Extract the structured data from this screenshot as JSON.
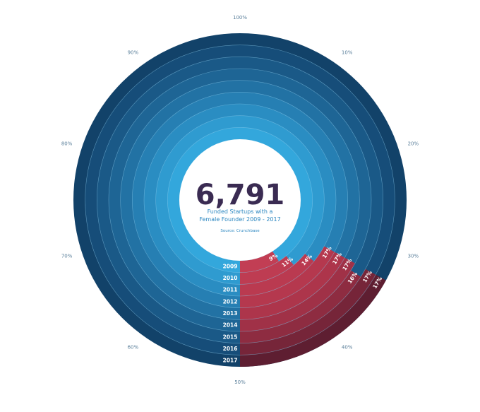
{
  "chart_data": {
    "type": "radial-bar",
    "title": "6,791",
    "subtitle_lines": [
      "Funded Startups with a",
      "Female Founder 2009 - 2017"
    ],
    "source": "Source: Crunchbase",
    "max_value": 100,
    "axis_ticks": [
      {
        "value": 0,
        "label": "50%"
      },
      {
        "value": 10,
        "label": "40%"
      },
      {
        "value": 20,
        "label": "30%"
      },
      {
        "value": 30,
        "label": "20%"
      },
      {
        "value": 40,
        "label": "10%"
      },
      {
        "value": 50,
        "label": "100%"
      },
      {
        "value": 60,
        "label": "90%"
      },
      {
        "value": 70,
        "label": "80%"
      },
      {
        "value": 80,
        "label": "70%"
      },
      {
        "value": 90,
        "label": "60%"
      }
    ],
    "categories": [
      "2009",
      "2010",
      "2011",
      "2012",
      "2013",
      "2014",
      "2015",
      "2016",
      "2017"
    ],
    "values": [
      9,
      11,
      14,
      17,
      17,
      17,
      16,
      17,
      17
    ],
    "value_labels": [
      "9%",
      "11%",
      "14%",
      "17%",
      "17%",
      "17%",
      "16%",
      "17%",
      "17%"
    ],
    "colors": {
      "ring_background": [
        "#33a7dc",
        "#2f9bd0",
        "#2a8dc2",
        "#267fb3",
        "#2272a4",
        "#1e6595",
        "#1a5987",
        "#164d79",
        "#124269"
      ],
      "bar": [
        "#c23e54",
        "#be3c52",
        "#ba3a50",
        "#b5384e",
        "#ad354b",
        "#a03147",
        "#8e2c41",
        "#762539",
        "#5e1e31"
      ],
      "center": "#ffffff",
      "ring_divider": "#8fd0ef"
    }
  }
}
